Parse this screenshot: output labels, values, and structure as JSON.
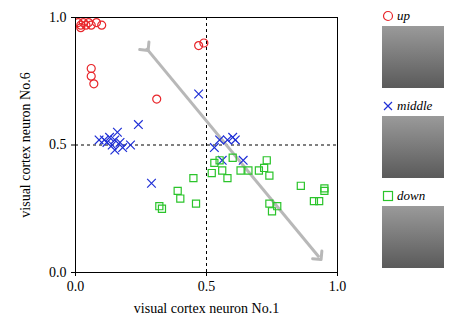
{
  "chart_data": {
    "type": "scatter",
    "x_label": "visual cortex neuron No.1",
    "y_label": "visual cortex neuron No.6",
    "xlim": [
      0,
      1
    ],
    "ylim": [
      0,
      1
    ],
    "xticks": [
      {
        "value": 0,
        "label": "0.0"
      },
      {
        "value": 0.5,
        "label": "0.5"
      },
      {
        "value": 1,
        "label": "1.0"
      }
    ],
    "yticks": [
      {
        "value": 0,
        "label": "0.0"
      },
      {
        "value": 0.5,
        "label": "0.5"
      },
      {
        "value": 1,
        "label": "1.0"
      }
    ],
    "reference_lines": {
      "x": 0.5,
      "y": 0.5
    },
    "arrow": {
      "x1": 0.27,
      "y1": 0.88,
      "x2": 0.93,
      "y2": 0.06
    },
    "legend": "right",
    "series": [
      {
        "name": "up",
        "color": "#e8262b",
        "marker": "circle",
        "x": [
          0.01,
          0.02,
          0.03,
          0.04,
          0.05,
          0.06,
          0.08,
          0.1,
          0.02,
          0.06,
          0.06,
          0.07,
          0.47,
          0.49,
          0.31
        ],
        "y": [
          0.98,
          0.97,
          0.98,
          0.97,
          0.98,
          0.97,
          0.98,
          0.97,
          0.96,
          0.8,
          0.77,
          0.74,
          0.89,
          0.9,
          0.68
        ]
      },
      {
        "name": "middle",
        "color": "#1f2fd6",
        "marker": "times",
        "x": [
          0.09,
          0.11,
          0.12,
          0.13,
          0.14,
          0.15,
          0.16,
          0.17,
          0.18,
          0.21,
          0.15,
          0.24,
          0.29,
          0.47,
          0.53,
          0.55,
          0.58,
          0.6,
          0.56,
          0.64,
          0.61
        ],
        "y": [
          0.52,
          0.52,
          0.51,
          0.53,
          0.5,
          0.52,
          0.55,
          0.51,
          0.49,
          0.5,
          0.48,
          0.58,
          0.35,
          0.7,
          0.49,
          0.52,
          0.52,
          0.53,
          0.44,
          0.44,
          0.52
        ]
      },
      {
        "name": "down",
        "color": "#2bc42b",
        "marker": "square",
        "x": [
          0.32,
          0.33,
          0.39,
          0.4,
          0.45,
          0.46,
          0.52,
          0.53,
          0.55,
          0.56,
          0.58,
          0.6,
          0.63,
          0.66,
          0.7,
          0.72,
          0.73,
          0.74,
          0.74,
          0.77,
          0.75,
          0.86,
          0.93,
          0.95,
          0.95,
          0.91
        ],
        "y": [
          0.26,
          0.25,
          0.32,
          0.29,
          0.37,
          0.27,
          0.39,
          0.43,
          0.44,
          0.4,
          0.37,
          0.45,
          0.4,
          0.4,
          0.4,
          0.41,
          0.44,
          0.38,
          0.27,
          0.26,
          0.24,
          0.34,
          0.28,
          0.32,
          0.33,
          0.28
        ]
      }
    ]
  }
}
